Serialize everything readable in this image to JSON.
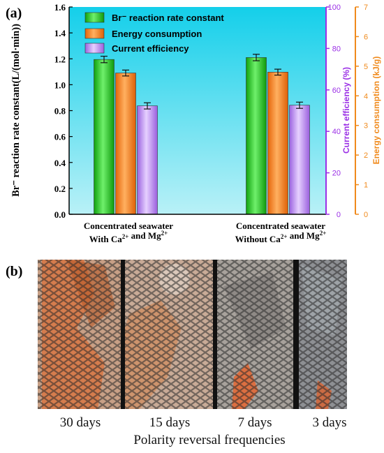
{
  "panel_a_label": "(a)",
  "panel_b_label": "(b)",
  "chart_data": {
    "type": "bar",
    "categories": [
      {
        "line1": "Concentrated seawater",
        "line2_pre": "With Ca",
        "sup1": "2+",
        "mid": " and Mg",
        "sup2": "2+"
      },
      {
        "line1": "Concentrated seawater",
        "line2_pre": "Without Ca",
        "sup1": "2+",
        "mid": " and Mg",
        "sup2": "2+"
      }
    ],
    "series": [
      {
        "name": "Br⁻ reaction rate constant",
        "axis": "left",
        "color": "#22c41e",
        "values": [
          1.195,
          1.21
        ],
        "errors": [
          0.025,
          0.025
        ]
      },
      {
        "name": "Energy consumption",
        "axis": "right2",
        "color": "#ff7f0e",
        "values": [
          4.77,
          4.8
        ],
        "errors": [
          0.1,
          0.1
        ]
      },
      {
        "name": "Current efficiency",
        "axis": "right1",
        "color": "#b57cf0",
        "values": [
          52.3,
          52.6
        ],
        "errors": [
          1.5,
          1.5
        ]
      }
    ],
    "axes": {
      "left": {
        "label": "Br⁻ reaction rate constant(L/(mol·min))",
        "min": 0,
        "max": 1.6,
        "ticks": [
          "0.0",
          "0.2",
          "0.4",
          "0.6",
          "0.8",
          "1.0",
          "1.2",
          "1.4",
          "1.6"
        ],
        "color": "#000000"
      },
      "right1": {
        "label": "Current efficiency (%)",
        "min": 0,
        "max": 100,
        "ticks": [
          "0",
          "20",
          "40",
          "60",
          "80",
          "100"
        ],
        "color": "#9b30e6"
      },
      "right2": {
        "label": "Energy consumption (kJ/g)",
        "min": 0,
        "max": 7,
        "ticks": [
          "0",
          "1",
          "2",
          "3",
          "4",
          "5",
          "6",
          "7"
        ],
        "color": "#f08a1c"
      }
    },
    "plot_background": "#6fe1f0",
    "legend_position": "top-left"
  },
  "photos": {
    "labels": [
      "30 days",
      "15 days",
      "7 days",
      "3 days"
    ],
    "axis_title": "Polarity reversal frequencies"
  }
}
